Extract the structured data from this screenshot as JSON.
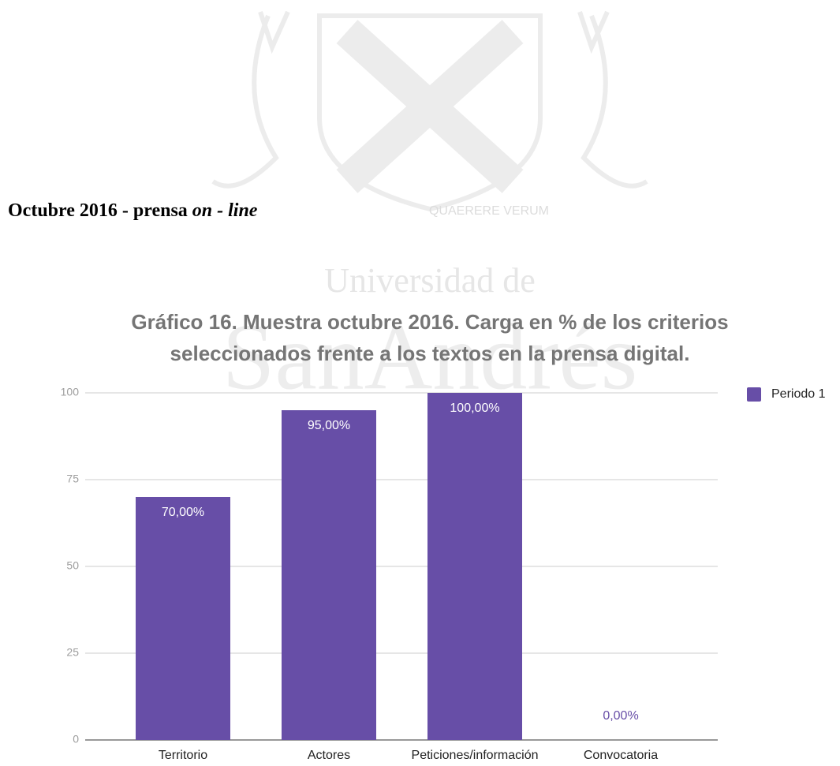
{
  "heading": {
    "text": "Octubre 2016 - prensa ",
    "emphasis": "on - line"
  },
  "watermark": {
    "motto": "QUAERERE VERUM",
    "line1": "Universidad de",
    "line2": "SanAndrés"
  },
  "chart_data": {
    "type": "bar",
    "title": [
      "Gráfico 16. Muestra octubre 2016. Carga en % de los criterios",
      "seleccionados frente a los textos en la prensa digital."
    ],
    "categories": [
      "Territorio",
      "Actores",
      "Peticiones/información",
      "Convocatoria"
    ],
    "series": [
      {
        "name": "Periodo 1",
        "color": "#674ea7",
        "values": [
          70,
          95,
          100,
          0
        ],
        "value_labels": [
          "70,00%",
          "95,00%",
          "100,00%",
          "0,00%"
        ]
      }
    ],
    "ylim": [
      0,
      100
    ],
    "yticks": [
      0,
      25,
      50,
      75,
      100
    ],
    "grid": true,
    "legend": "right"
  }
}
